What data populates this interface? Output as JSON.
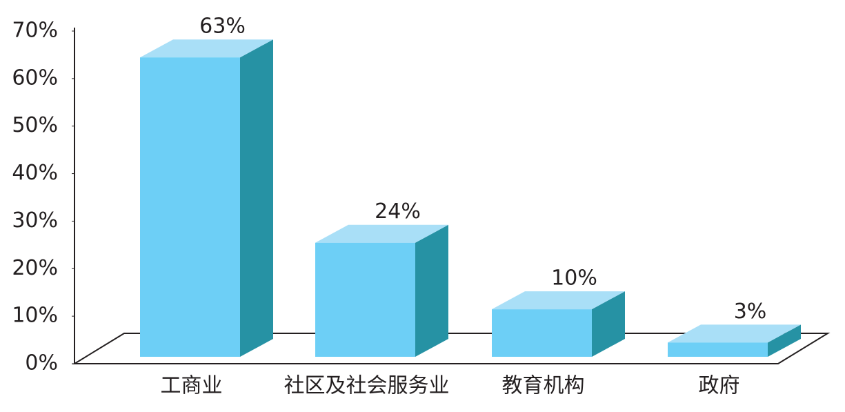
{
  "chart_data": {
    "type": "bar3d",
    "categories": [
      "工商业",
      "社区及社会服务业",
      "教育机构",
      "政府"
    ],
    "values": [
      63,
      24,
      10,
      3
    ],
    "value_labels": [
      "63%",
      "24%",
      "10%",
      "3%"
    ],
    "color": "#6dcff6",
    "ylim": [
      0,
      70
    ],
    "yticks": [
      {
        "value": 0,
        "label": "0%"
      },
      {
        "value": 10,
        "label": "10%"
      },
      {
        "value": 20,
        "label": "20%"
      },
      {
        "value": 30,
        "label": "30%"
      },
      {
        "value": 40,
        "label": "40%"
      },
      {
        "value": 50,
        "label": "50%"
      },
      {
        "value": 60,
        "label": "60%"
      },
      {
        "value": 70,
        "label": "70%"
      }
    ]
  }
}
